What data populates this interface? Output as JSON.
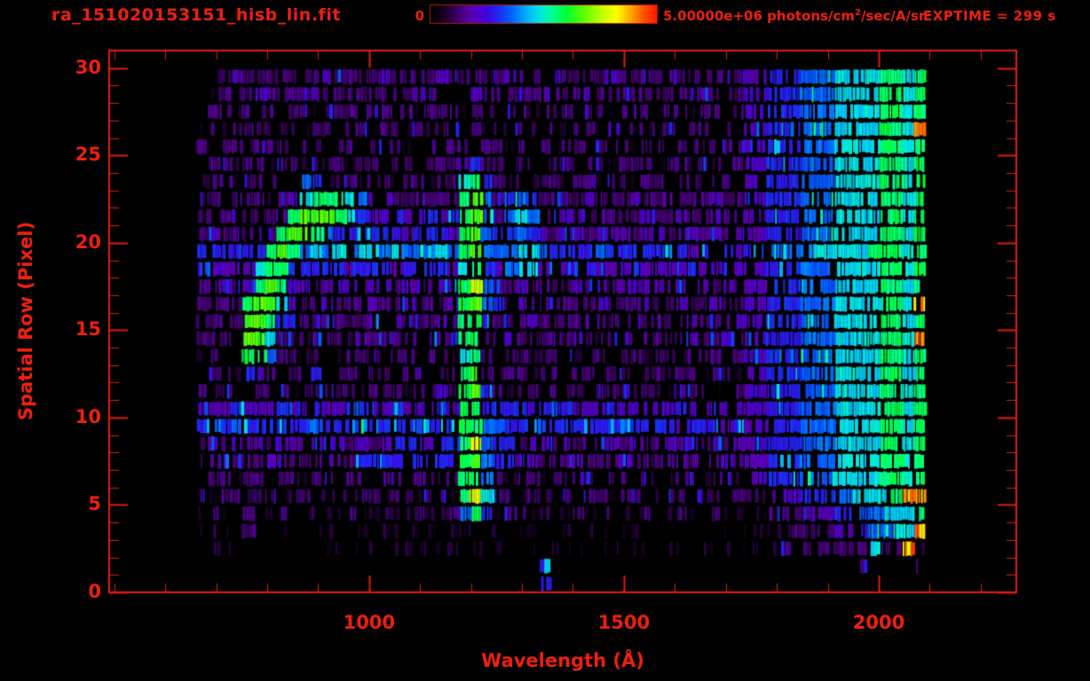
{
  "header": {
    "filename": "ra_151020153151_hisb_lin.fit",
    "colorbar_min_label": "0",
    "colorbar_max_pre": "5.00000e+06 photons/cm",
    "colorbar_max_sup": "2",
    "colorbar_max_post": "/sec/A/sr",
    "exptime_label": "EXPTIME = 299 s"
  },
  "colors": {
    "background": "#000000",
    "annotation_red": "#ee1f0e",
    "frame_red": "#e21d0c",
    "colorbar_border": "#a81c08",
    "colormap_stops": [
      [
        0.0,
        "#000000"
      ],
      [
        0.06,
        "#14001e"
      ],
      [
        0.12,
        "#3c0064"
      ],
      [
        0.18,
        "#5a00aa"
      ],
      [
        0.24,
        "#4600dc"
      ],
      [
        0.3,
        "#1e28f0"
      ],
      [
        0.36,
        "#0064ff"
      ],
      [
        0.42,
        "#00aaff"
      ],
      [
        0.48,
        "#00e6e6"
      ],
      [
        0.54,
        "#00ff96"
      ],
      [
        0.6,
        "#00ff32"
      ],
      [
        0.68,
        "#64ff00"
      ],
      [
        0.76,
        "#c8ff00"
      ],
      [
        0.82,
        "#ffff00"
      ],
      [
        0.88,
        "#ffaa00"
      ],
      [
        0.94,
        "#ff5000"
      ],
      [
        1.0,
        "#ff1400"
      ]
    ]
  },
  "chart_data": {
    "type": "heatmap",
    "title": "ra_151020153151_hisb_lin.fit",
    "xlabel": "Wavelength (Å)",
    "ylabel": "Spatial Row (Pixel)",
    "x_range": [
      490,
      2270
    ],
    "y_range": [
      0,
      31
    ],
    "x_major_ticks": [
      1000,
      1500,
      2000
    ],
    "x_minor_step": 100,
    "x_minor_start": 500,
    "x_minor_end": 2200,
    "y_major_ticks": [
      0,
      5,
      10,
      15,
      20,
      25,
      30
    ],
    "y_minor_step": 1,
    "colorbar_min": 0,
    "colorbar_max": 5000000,
    "colorbar_units": "photons/cm^2/sec/A/sr",
    "exposure_time_s": 299,
    "grid": false,
    "data_wavelength_extent": [
      660,
      2090
    ],
    "intensity_digit_to_fraction_of_max": [
      0,
      0.07,
      0.135,
      0.2,
      0.29,
      0.36,
      0.47,
      0.57,
      0.66,
      0.78
    ],
    "noise_seed": 20151020,
    "rows_top_to_bottom": [
      "1123222222232222322223222223222322223222232222323344455566667767",
      "1122232222322222222320003222223222322222222232223344455566667767",
      "1221222122122212222122212212212221221222122122123344455566667767",
      "1212221221221221221212212121221212213221221221213344455566667769",
      "2122122212212212221221221221222122122212212212223344455566667767",
      "1221221221222122122122234221221221221222122122123344455566667767",
      "1221222115412212212212267421212212212212212212213344455566667767",
      "2212221236777653322322278524542222322232232223223344455566667767",
      "2223222378887643343343478525652232232223223223223344455566667767",
      "2323232788754444443444378544543233233323323323233344455566667767",
      "4444447875656566565556578555665444454444444344434455556666677767",
      "3333367744444344434444367435563333433343333433333344455566667767",
      "2232378733233323323323379532323223232323323232323344455566667767",
      "2222788632232223223222378542322222232223223223223344455566667769",
      "2222887442232223232223277422232222322232322322233344455566667767",
      "2221886222322232322232277223222323222322222322323344455566667769",
      "1221775221221222122122167212212221221221221222123344455566667767",
      "1221432122412212212212278212212212212212212212213344455566667767",
      "2122122212232212221223278421221222122212212221223344455566667767",
      "3334333433433343343334377444434443334333334333333344455566667767",
      "4545444444544454444544477554445444444544443444343344455566667767",
      "2323232332323232344434479544233232323232232323233344455566667767",
      "2232223222232244444444478544232223222322223222323344455566667767",
      "1221221221221221221221277521221212212212212212213344455566667767",
      "2122122122122122122122179622122121221221122122122233344455666798",
      "1211211211211211211211257412212112112112112112111122233344555667",
      "1211210110110110110110110110110110110110110110111111222233455668",
      "0110111011011011011101101110110111011011011011101112222222262281",
      "0000000000100000000000000000004000010000000000000000000000200002",
      "0000000000000000000000000000004000000000000000000000000000000002"
    ]
  }
}
